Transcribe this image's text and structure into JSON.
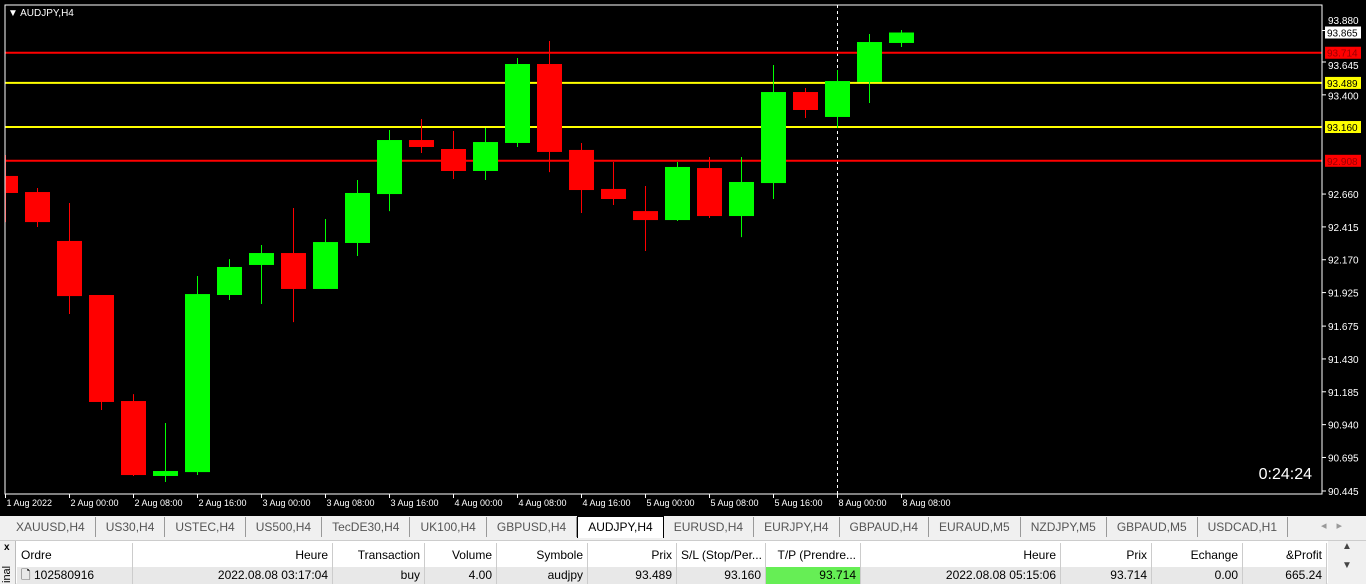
{
  "window": {
    "title": "AUDJPY,H4",
    "timer": "0:24:24"
  },
  "colors": {
    "background": "#000000",
    "bull": "#00ff00",
    "bear": "#ff0000",
    "support_resistance_red": "#ff0000",
    "level_yellow": "#ffff00",
    "axis": "#ffffff"
  },
  "chart_data": {
    "type": "candlestick",
    "symbol": "AUDJPY",
    "timeframe": "H4",
    "ylim": [
      90.445,
      93.9
    ],
    "yticks": [
      "93.880",
      "93.645",
      "93.400",
      "92.660",
      "92.415",
      "92.170",
      "91.925",
      "91.675",
      "91.430",
      "91.185",
      "90.940",
      "90.695",
      "90.445"
    ],
    "xlabels": [
      {
        "i": 0,
        "label": "1 Aug 2022"
      },
      {
        "i": 2,
        "label": "2 Aug 00:00"
      },
      {
        "i": 4,
        "label": "2 Aug 08:00"
      },
      {
        "i": 6,
        "label": "2 Aug 16:00"
      },
      {
        "i": 8,
        "label": "3 Aug 00:00"
      },
      {
        "i": 10,
        "label": "3 Aug 08:00"
      },
      {
        "i": 12,
        "label": "3 Aug 16:00"
      },
      {
        "i": 14,
        "label": "4 Aug 00:00"
      },
      {
        "i": 16,
        "label": "4 Aug 08:00"
      },
      {
        "i": 18,
        "label": "4 Aug 16:00"
      },
      {
        "i": 20,
        "label": "5 Aug 00:00"
      },
      {
        "i": 22,
        "label": "5 Aug 08:00"
      },
      {
        "i": 24,
        "label": "5 Aug 16:00"
      },
      {
        "i": 26,
        "label": "8 Aug 00:00"
      },
      {
        "i": 28,
        "label": "8 Aug 08:00"
      }
    ],
    "period_separator_index": 26,
    "ohlc": [
      [
        92.795,
        92.951,
        92.451,
        92.668
      ],
      [
        92.675,
        92.705,
        92.414,
        92.451
      ],
      [
        92.31,
        92.593,
        91.765,
        91.899
      ],
      [
        91.907,
        91.907,
        91.049,
        91.109
      ],
      [
        91.116,
        91.168,
        90.557,
        90.564
      ],
      [
        90.557,
        90.952,
        90.512,
        90.594
      ],
      [
        90.586,
        92.049,
        90.564,
        91.914
      ],
      [
        91.907,
        92.175,
        91.87,
        92.116
      ],
      [
        92.131,
        92.28,
        91.84,
        92.22
      ],
      [
        92.22,
        92.556,
        91.705,
        91.952
      ],
      [
        91.952,
        92.474,
        91.952,
        92.302
      ],
      [
        92.295,
        92.765,
        92.198,
        92.668
      ],
      [
        92.66,
        93.138,
        92.533,
        93.063
      ],
      [
        93.063,
        93.22,
        92.966,
        93.011
      ],
      [
        92.996,
        93.13,
        92.772,
        92.832
      ],
      [
        92.832,
        93.153,
        92.765,
        93.048
      ],
      [
        93.041,
        93.675,
        93.011,
        93.63
      ],
      [
        93.63,
        93.802,
        92.824,
        92.974
      ],
      [
        92.989,
        93.041,
        92.519,
        92.69
      ],
      [
        92.698,
        92.899,
        92.578,
        92.623
      ],
      [
        92.533,
        92.72,
        92.235,
        92.466
      ],
      [
        92.466,
        92.899,
        92.459,
        92.862
      ],
      [
        92.854,
        92.936,
        92.481,
        92.496
      ],
      [
        92.496,
        92.936,
        92.339,
        92.75
      ],
      [
        92.742,
        93.623,
        92.623,
        93.421
      ],
      [
        93.421,
        93.451,
        93.227,
        93.287
      ],
      [
        93.235,
        93.585,
        93.153,
        93.503
      ],
      [
        93.496,
        93.854,
        93.339,
        93.794
      ],
      [
        93.787,
        93.884,
        93.757,
        93.865
      ]
    ],
    "current_price": {
      "value": "93.865",
      "color": "#ffffff"
    },
    "levels": [
      {
        "value": "93.714",
        "color": "#ff0000"
      },
      {
        "value": "93.489",
        "color": "#ffff00"
      },
      {
        "value": "93.160",
        "color": "#ffff00"
      },
      {
        "value": "92.908",
        "color": "#ff0000"
      }
    ]
  },
  "tabs": [
    {
      "label": "XAUUSD,H4"
    },
    {
      "label": "US30,H4"
    },
    {
      "label": "USTEC,H4"
    },
    {
      "label": "US500,H4"
    },
    {
      "label": "TecDE30,H4"
    },
    {
      "label": "UK100,H4"
    },
    {
      "label": "GBPUSD,H4"
    },
    {
      "label": "AUDJPY,H4",
      "active": true
    },
    {
      "label": "EURUSD,H4"
    },
    {
      "label": "EURJPY,H4"
    },
    {
      "label": "GBPAUD,H4"
    },
    {
      "label": "EURAUD,M5"
    },
    {
      "label": "NZDJPY,M5"
    },
    {
      "label": "GBPAUD,M5"
    },
    {
      "label": "USDCAD,H1"
    }
  ],
  "terminal": {
    "side_label": "inal",
    "close": "x",
    "columns": [
      "Ordre",
      "Heure",
      "Transaction",
      "Volume",
      "Symbole",
      "Prix",
      "S/L (Stop/Per...",
      "T/P (Prendre...",
      "Heure",
      "Prix",
      "Echange",
      "&Profit"
    ],
    "rows": [
      [
        "102580916",
        "2022.08.08 03:17:04",
        "buy",
        "4.00",
        "audjpy",
        "93.489",
        "93.160",
        "93.714",
        "2022.08.08 05:15:06",
        "93.714",
        "0.00",
        "665.24"
      ]
    ]
  }
}
